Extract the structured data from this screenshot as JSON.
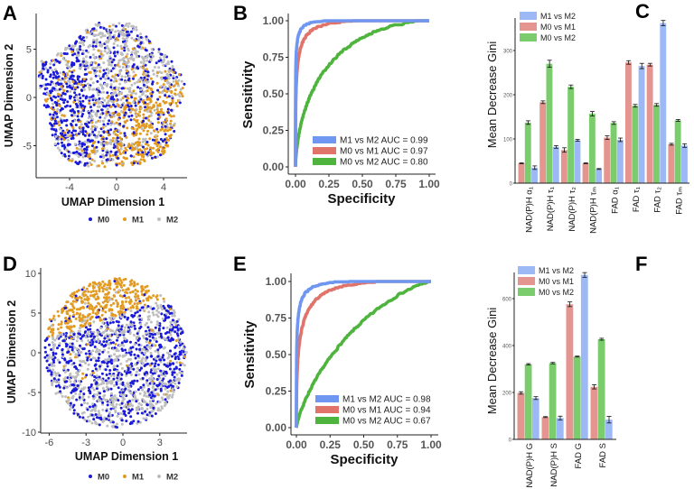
{
  "colors": {
    "M0": "#1a1ad8",
    "M1": "#e29a20",
    "M2": "#bebebe",
    "roc_M1vsM2": "#6f97f2",
    "roc_M0vsM1": "#e0736a",
    "roc_M0vsM2": "#4fb43d",
    "bar_M1vsM2": "#9cb8f5",
    "bar_M0vsM1": "#e4958f",
    "bar_M0vsM2": "#7acc6c"
  },
  "chart_data": [
    {
      "panel": "A",
      "type": "scatter",
      "xlabel": "UMAP Dimension 1",
      "ylabel": "UMAP Dimension 2",
      "xticks": [
        -4,
        0,
        4
      ],
      "yticks": [
        -5,
        0,
        5
      ],
      "xlim": [
        -6.8,
        5.8
      ],
      "ylim": [
        -8.3,
        8.4
      ],
      "legend": {
        "position": "bottom",
        "entries": [
          "M0",
          "M1",
          "M2"
        ]
      }
    },
    {
      "panel": "B",
      "type": "line",
      "xlabel": "Specificity",
      "ylabel": "Sensitivity",
      "xticks": [
        "0.00",
        "0.25",
        "0.50",
        "0.75",
        "1.00"
      ],
      "yticks": [
        "0.00",
        "0.25",
        "0.50",
        "0.75",
        "1.00"
      ],
      "xlim": [
        0,
        1
      ],
      "ylim": [
        0,
        1
      ],
      "legend": {
        "position": "bottom-right"
      },
      "series": [
        {
          "name": "M1 vs M2 AUC = 0.99",
          "auc": 0.99,
          "color": "#6f97f2"
        },
        {
          "name": "M0 vs M1 AUC = 0.97",
          "auc": 0.97,
          "color": "#e0736a"
        },
        {
          "name": "M0 vs M2 AUC = 0.80",
          "auc": 0.8,
          "color": "#4fb43d"
        }
      ]
    },
    {
      "panel": "C",
      "type": "bar",
      "ylabel": "Mean Decrease Gini",
      "yticks": [
        0,
        100,
        200,
        300
      ],
      "ylim": [
        0,
        375
      ],
      "legend": {
        "position": "top-left"
      },
      "categories": [
        "NAD(P)H α₁",
        "NAD(P)H τ₁",
        "NAD(P)H τ₂",
        "NAD(P)H τₘ",
        "FAD α₁",
        "FAD τ₁",
        "FAD τ₂",
        "FAD τₘ"
      ],
      "series": [
        {
          "name": "M1 vs M2",
          "values": [
            35,
            82,
            97,
            32,
            98,
            265,
            362,
            85
          ],
          "errors": [
            4,
            3,
            2,
            1,
            4,
            6,
            6,
            4
          ],
          "color": "#9cb8f5"
        },
        {
          "name": "M0 vs M1",
          "values": [
            45,
            183,
            75,
            45,
            103,
            273,
            268,
            88
          ],
          "errors": [
            1,
            3,
            5,
            1,
            4,
            4,
            3,
            2
          ],
          "color": "#e4958f"
        },
        {
          "name": "M0 vs M2",
          "values": [
            137,
            270,
            218,
            157,
            136,
            175,
            177,
            142
          ],
          "errors": [
            4,
            8,
            4,
            5,
            3,
            3,
            3,
            2
          ],
          "color": "#7acc6c"
        }
      ],
      "draw_order": [
        "M0 vs M1",
        "M0 vs M2",
        "M1 vs M2"
      ]
    },
    {
      "panel": "D",
      "type": "scatter",
      "xlabel": "UMAP Dimension 1",
      "ylabel": "UMAP Dimension 2",
      "xticks": [
        -6,
        -3,
        0,
        3
      ],
      "yticks": [
        -10,
        -5,
        0,
        5,
        10
      ],
      "xlim": [
        -6.6,
        5.2
      ],
      "ylim": [
        -10,
        10.5
      ],
      "legend": {
        "position": "bottom",
        "entries": [
          "M0",
          "M1",
          "M2"
        ]
      }
    },
    {
      "panel": "E",
      "type": "line",
      "xlabel": "Specificity",
      "ylabel": "Sensitivity",
      "xticks": [
        "0.00",
        "0.25",
        "0.50",
        "0.75",
        "1.00"
      ],
      "yticks": [
        "0.00",
        "0.25",
        "0.50",
        "0.75",
        "1.00"
      ],
      "xlim": [
        0,
        1
      ],
      "ylim": [
        0,
        1
      ],
      "legend": {
        "position": "bottom-right"
      },
      "series": [
        {
          "name": "M1 vs M2 AUC = 0.98",
          "auc": 0.98,
          "color": "#6f97f2"
        },
        {
          "name": "M0 vs M1 AUC = 0.94",
          "auc": 0.94,
          "color": "#e0736a"
        },
        {
          "name": "M0 vs M2 AUC = 0.67",
          "auc": 0.67,
          "color": "#4fb43d"
        }
      ]
    },
    {
      "panel": "F",
      "type": "bar",
      "ylabel": "Mean Decrease Gini",
      "yticks": [
        0,
        200,
        400,
        600
      ],
      "ylim": [
        0,
        720
      ],
      "legend": {
        "position": "top-left"
      },
      "categories": [
        "NAD(P)H G",
        "NAD(P)H S",
        "FAD G",
        "FAD S"
      ],
      "series": [
        {
          "name": "M1 vs M2",
          "values": [
            176,
            91,
            701,
            84
          ],
          "errors": [
            6,
            8,
            10,
            14
          ],
          "color": "#9cb8f5"
        },
        {
          "name": "M0 vs M1",
          "values": [
            198,
            95,
            576,
            224
          ],
          "errors": [
            5,
            2,
            10,
            9
          ],
          "color": "#e4958f"
        },
        {
          "name": "M0 vs M2",
          "values": [
            320,
            325,
            353,
            427
          ],
          "errors": [
            3,
            3,
            2,
            4
          ],
          "color": "#7acc6c"
        }
      ],
      "draw_order": [
        "M0 vs M1",
        "M0 vs M2",
        "M1 vs M2"
      ]
    }
  ]
}
